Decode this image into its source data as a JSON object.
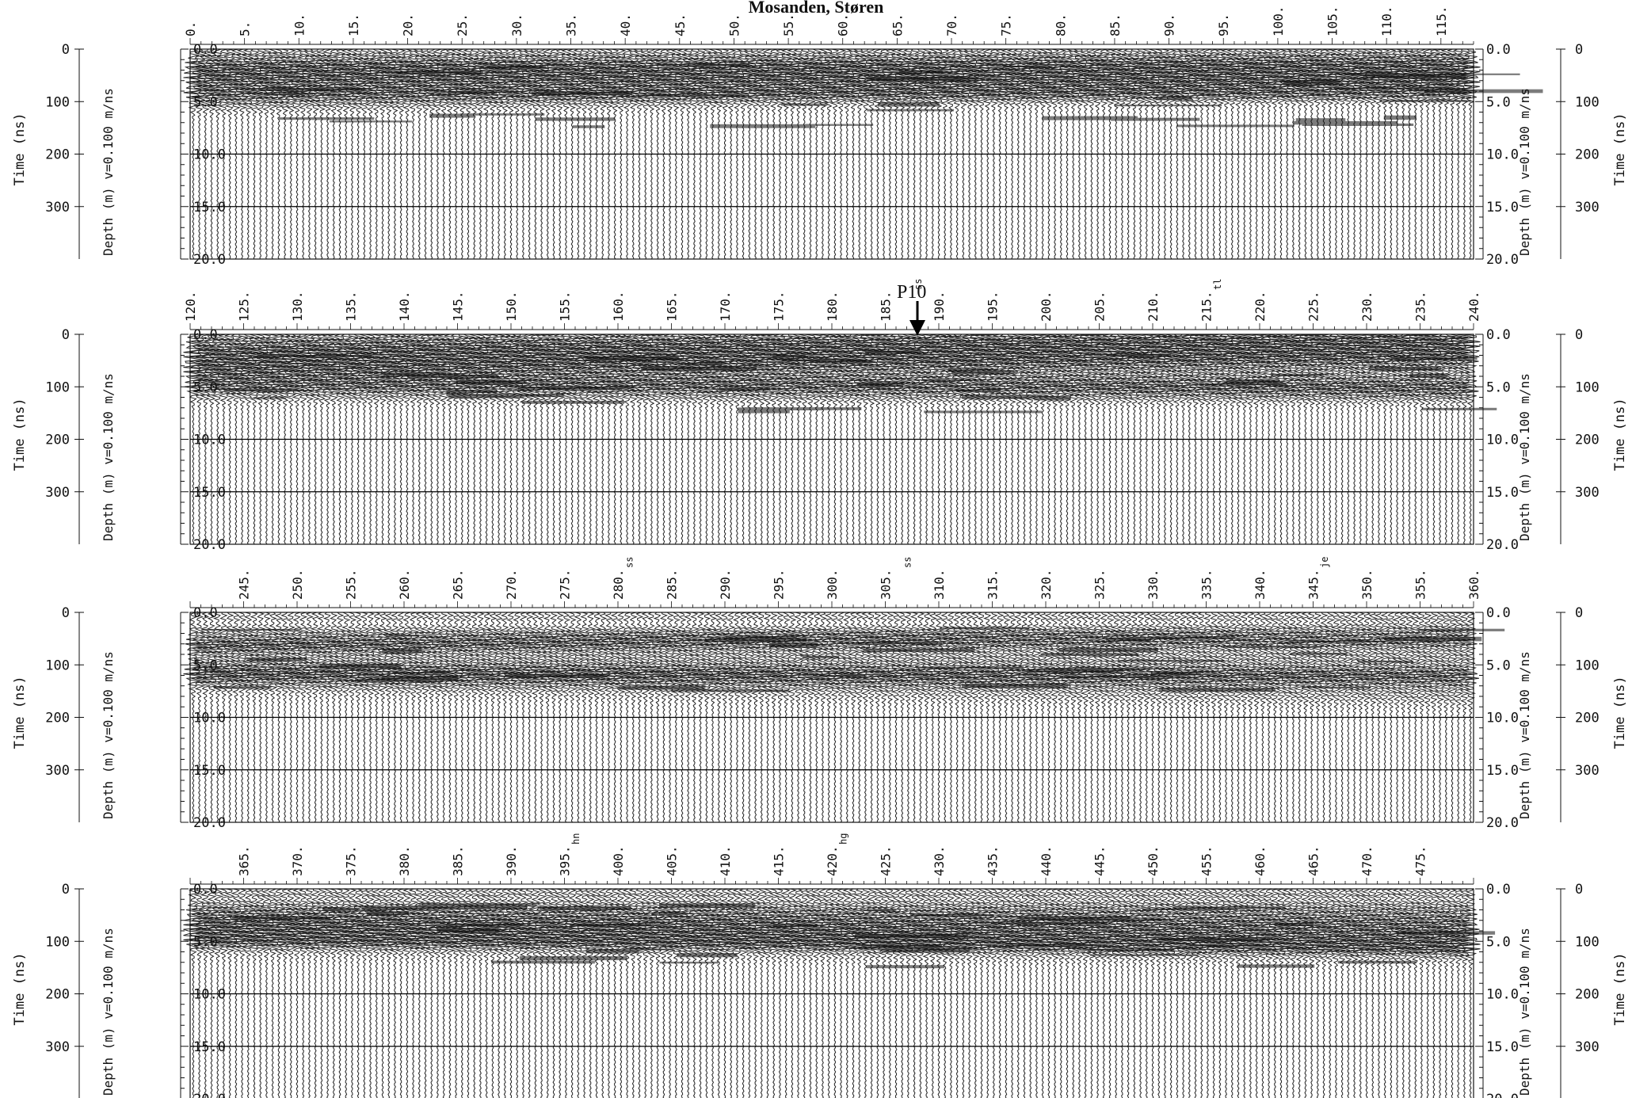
{
  "title": "Mosanden, Støren",
  "chart_data": {
    "type": "radargram",
    "velocity_label": "v=0.100 m/ns",
    "time_axis": {
      "label": "Time (ns)",
      "ticks": [
        0,
        100,
        200,
        300
      ]
    },
    "depth_axis": {
      "label": "Depth (m)",
      "ticks": [
        "0.0",
        "5.0",
        "10.0",
        "15.0",
        "20.0"
      ]
    },
    "grid_lines_at_ns": [
      200,
      300
    ],
    "panels": [
      {
        "trace_start": 0,
        "trace_end": 118,
        "ticks": [
          "0.",
          "5.",
          "10.",
          "15.",
          "20.",
          "25.",
          "30.",
          "35.",
          "40.",
          "45.",
          "50.",
          "55.",
          "60.",
          "65.",
          "70.",
          "75.",
          "80.",
          "85.",
          "90.",
          "95.",
          "100.",
          "105.",
          "110.",
          "115."
        ],
        "flags": [],
        "marker": null
      },
      {
        "trace_start": 120,
        "trace_end": 240,
        "ticks": [
          "120.",
          "125.",
          "130.",
          "135.",
          "140.",
          "145.",
          "150.",
          "155.",
          "160.",
          "165.",
          "170.",
          "175.",
          "180.",
          "185.",
          "190.",
          "195.",
          "200.",
          "205.",
          "210.",
          "215.",
          "220.",
          "225.",
          "230.",
          "235.",
          "240."
        ],
        "flags": [
          {
            "at": 188,
            "text": "ss"
          },
          {
            "at": 216,
            "text": "tl"
          }
        ],
        "marker": {
          "at": 188,
          "label": "P10"
        }
      },
      {
        "trace_start": 240,
        "trace_end": 360,
        "ticks": [
          "245.",
          "250.",
          "255.",
          "260.",
          "265.",
          "270.",
          "275.",
          "280.",
          "285.",
          "290.",
          "295.",
          "300.",
          "305.",
          "310.",
          "315.",
          "320.",
          "325.",
          "330.",
          "335.",
          "340.",
          "345.",
          "350.",
          "355.",
          "360."
        ],
        "flags": [
          {
            "at": 281,
            "text": "ss"
          },
          {
            "at": 307,
            "text": "ss"
          },
          {
            "at": 346,
            "text": "je"
          }
        ],
        "marker": null
      },
      {
        "trace_start": 360,
        "trace_end": 480,
        "ticks": [
          "365.",
          "370.",
          "375.",
          "380.",
          "385.",
          "390.",
          "395.",
          "400.",
          "405.",
          "410.",
          "415.",
          "420.",
          "425.",
          "430.",
          "435.",
          "440.",
          "445.",
          "450.",
          "455.",
          "460.",
          "465.",
          "470.",
          "475."
        ],
        "flags": [
          {
            "at": 396,
            "text": "hn"
          },
          {
            "at": 421,
            "text": "hg"
          }
        ],
        "marker": null
      }
    ]
  }
}
